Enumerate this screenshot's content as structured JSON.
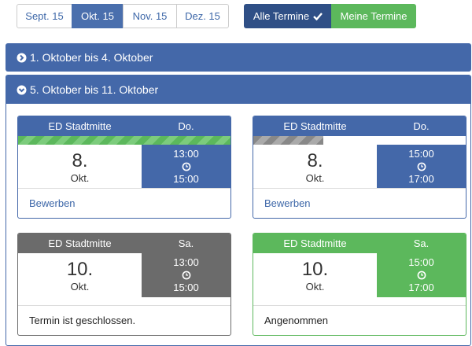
{
  "tabs": [
    "Sept. 15",
    "Okt. 15",
    "Nov. 15",
    "Dez. 15"
  ],
  "filters": [
    "Alle Termine",
    "Meine Termine"
  ],
  "sections": [
    "1. Oktober bis 4. Oktober",
    "5. Oktober bis 11. Oktober"
  ],
  "cards": [
    {
      "location": "ED Stadtmitte",
      "weekday": "Do.",
      "day": "8.",
      "month": "Okt.",
      "start": "13:00",
      "end": "15:00",
      "footer": "Bewerben"
    },
    {
      "location": "ED Stadtmitte",
      "weekday": "Do.",
      "day": "8.",
      "month": "Okt.",
      "start": "15:00",
      "end": "17:00",
      "footer": "Bewerben"
    },
    {
      "location": "ED Stadtmitte",
      "weekday": "Sa.",
      "day": "10.",
      "month": "Okt.",
      "start": "13:00",
      "end": "15:00",
      "footer": "Termin ist geschlossen."
    },
    {
      "location": "ED Stadtmitte",
      "weekday": "Sa.",
      "day": "10.",
      "month": "Okt.",
      "start": "15:00",
      "end": "17:00",
      "footer": "Angenommen"
    }
  ]
}
